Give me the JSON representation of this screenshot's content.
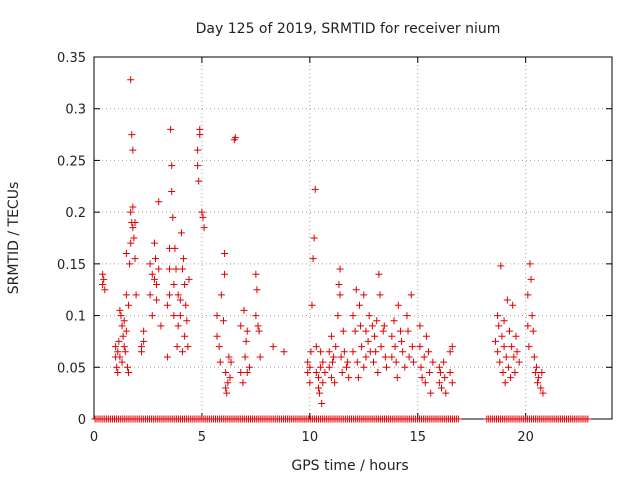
{
  "chart_data": {
    "type": "scatter",
    "title": "Day 125 of 2019, SRMTID for receiver nium",
    "xlabel": "GPS time / hours",
    "ylabel": "SRMTID / TECUs",
    "xlim": [
      0,
      24
    ],
    "ylim": [
      0,
      0.35
    ],
    "xticks": [
      0,
      5,
      10,
      15,
      20
    ],
    "yticks": [
      0,
      0.05,
      0.1,
      0.15,
      0.2,
      0.25,
      0.3,
      0.35
    ],
    "xtick_labels": [
      "0",
      "5",
      "10",
      "15",
      "20"
    ],
    "ytick_labels": [
      "0",
      "0.05",
      "0.1",
      "0.15",
      "0.2",
      "0.25",
      "0.3",
      "0.35"
    ],
    "grid": true,
    "marker": "+",
    "series": [
      {
        "name": "SRMTID",
        "color": "#e00000",
        "points": [
          [
            0.4,
            0.14
          ],
          [
            0.4,
            0.13
          ],
          [
            0.5,
            0.125
          ],
          [
            0.45,
            0.135
          ],
          [
            1.0,
            0.07
          ],
          [
            1.0,
            0.06
          ],
          [
            1.05,
            0.05
          ],
          [
            1.1,
            0.065
          ],
          [
            1.1,
            0.045
          ],
          [
            1.15,
            0.075
          ],
          [
            1.2,
            0.06
          ],
          [
            1.2,
            0.105
          ],
          [
            1.25,
            0.1
          ],
          [
            1.3,
            0.09
          ],
          [
            1.3,
            0.055
          ],
          [
            1.35,
            0.08
          ],
          [
            1.4,
            0.095
          ],
          [
            1.4,
            0.07
          ],
          [
            1.45,
            0.065
          ],
          [
            1.5,
            0.085
          ],
          [
            1.5,
            0.12
          ],
          [
            1.5,
            0.16
          ],
          [
            1.55,
            0.05
          ],
          [
            1.6,
            0.045
          ],
          [
            1.6,
            0.11
          ],
          [
            1.65,
            0.15
          ],
          [
            1.7,
            0.17
          ],
          [
            1.75,
            0.19
          ],
          [
            1.7,
            0.2
          ],
          [
            1.8,
            0.205
          ],
          [
            1.8,
            0.185
          ],
          [
            1.75,
            0.275
          ],
          [
            1.7,
            0.328
          ],
          [
            1.8,
            0.26
          ],
          [
            1.85,
            0.175
          ],
          [
            1.9,
            0.155
          ],
          [
            1.9,
            0.19
          ],
          [
            1.95,
            0.12
          ],
          [
            2.2,
            0.07
          ],
          [
            2.2,
            0.065
          ],
          [
            2.3,
            0.085
          ],
          [
            2.3,
            0.075
          ],
          [
            2.6,
            0.12
          ],
          [
            2.6,
            0.15
          ],
          [
            2.7,
            0.14
          ],
          [
            2.7,
            0.1
          ],
          [
            2.8,
            0.135
          ],
          [
            2.8,
            0.17
          ],
          [
            2.85,
            0.155
          ],
          [
            2.9,
            0.115
          ],
          [
            2.9,
            0.13
          ],
          [
            3.0,
            0.145
          ],
          [
            3.0,
            0.21
          ],
          [
            3.1,
            0.09
          ],
          [
            3.4,
            0.11
          ],
          [
            3.4,
            0.06
          ],
          [
            3.5,
            0.12
          ],
          [
            3.5,
            0.145
          ],
          [
            3.5,
            0.165
          ],
          [
            3.55,
            0.28
          ],
          [
            3.6,
            0.245
          ],
          [
            3.6,
            0.22
          ],
          [
            3.65,
            0.195
          ],
          [
            3.7,
            0.1
          ],
          [
            3.7,
            0.13
          ],
          [
            3.75,
            0.165
          ],
          [
            3.8,
            0.145
          ],
          [
            3.85,
            0.07
          ],
          [
            3.9,
            0.12
          ],
          [
            3.9,
            0.09
          ],
          [
            4.0,
            0.115
          ],
          [
            4.0,
            0.1
          ],
          [
            4.05,
            0.18
          ],
          [
            4.1,
            0.145
          ],
          [
            4.1,
            0.065
          ],
          [
            4.15,
            0.155
          ],
          [
            4.2,
            0.08
          ],
          [
            4.2,
            0.13
          ],
          [
            4.25,
            0.11
          ],
          [
            4.3,
            0.095
          ],
          [
            4.35,
            0.07
          ],
          [
            4.4,
            0.135
          ],
          [
            4.8,
            0.26
          ],
          [
            4.8,
            0.245
          ],
          [
            4.85,
            0.23
          ],
          [
            4.9,
            0.275
          ],
          [
            4.9,
            0.28
          ],
          [
            5.0,
            0.2
          ],
          [
            5.05,
            0.195
          ],
          [
            5.1,
            0.185
          ],
          [
            5.7,
            0.1
          ],
          [
            5.7,
            0.08
          ],
          [
            5.8,
            0.07
          ],
          [
            5.85,
            0.055
          ],
          [
            5.9,
            0.12
          ],
          [
            6.0,
            0.095
          ],
          [
            6.05,
            0.16
          ],
          [
            6.05,
            0.14
          ],
          [
            6.1,
            0.03
          ],
          [
            6.1,
            0.045
          ],
          [
            6.15,
            0.025
          ],
          [
            6.2,
            0.035
          ],
          [
            6.25,
            0.06
          ],
          [
            6.3,
            0.04
          ],
          [
            6.35,
            0.055
          ],
          [
            6.5,
            0.27
          ],
          [
            6.55,
            0.272
          ],
          [
            6.8,
            0.045
          ],
          [
            6.8,
            0.09
          ],
          [
            6.9,
            0.035
          ],
          [
            6.95,
            0.105
          ],
          [
            7.0,
            0.06
          ],
          [
            7.05,
            0.075
          ],
          [
            7.1,
            0.045
          ],
          [
            7.1,
            0.085
          ],
          [
            7.2,
            0.05
          ],
          [
            7.5,
            0.14
          ],
          [
            7.5,
            0.1
          ],
          [
            7.55,
            0.125
          ],
          [
            7.6,
            0.09
          ],
          [
            7.65,
            0.085
          ],
          [
            7.7,
            0.06
          ],
          [
            8.3,
            0.07
          ],
          [
            8.8,
            0.065
          ],
          [
            9.9,
            0.045
          ],
          [
            9.9,
            0.055
          ],
          [
            10.0,
            0.035
          ],
          [
            10.0,
            0.05
          ],
          [
            10.05,
            0.065
          ],
          [
            10.1,
            0.11
          ],
          [
            10.15,
            0.155
          ],
          [
            10.2,
            0.175
          ],
          [
            10.25,
            0.222
          ],
          [
            10.3,
            0.07
          ],
          [
            10.3,
            0.045
          ],
          [
            10.4,
            0.04
          ],
          [
            10.4,
            0.03
          ],
          [
            10.45,
            0.025
          ],
          [
            10.5,
            0.05
          ],
          [
            10.5,
            0.065
          ],
          [
            10.55,
            0.015
          ],
          [
            10.6,
            0.035
          ],
          [
            10.6,
            0.055
          ],
          [
            10.7,
            0.045
          ],
          [
            10.9,
            0.065
          ],
          [
            10.9,
            0.05
          ],
          [
            11.0,
            0.08
          ],
          [
            11.0,
            0.04
          ],
          [
            11.05,
            0.055
          ],
          [
            11.1,
            0.06
          ],
          [
            11.15,
            0.035
          ],
          [
            11.2,
            0.07
          ],
          [
            11.3,
            0.1
          ],
          [
            11.35,
            0.13
          ],
          [
            11.4,
            0.145
          ],
          [
            11.4,
            0.12
          ],
          [
            11.45,
            0.06
          ],
          [
            11.5,
            0.045
          ],
          [
            11.55,
            0.085
          ],
          [
            11.6,
            0.065
          ],
          [
            11.7,
            0.05
          ],
          [
            11.75,
            0.055
          ],
          [
            11.8,
            0.04
          ],
          [
            12.0,
            0.1
          ],
          [
            12.0,
            0.065
          ],
          [
            12.1,
            0.085
          ],
          [
            12.15,
            0.125
          ],
          [
            12.2,
            0.055
          ],
          [
            12.25,
            0.04
          ],
          [
            12.3,
            0.11
          ],
          [
            12.35,
            0.09
          ],
          [
            12.4,
            0.07
          ],
          [
            12.5,
            0.12
          ],
          [
            12.5,
            0.05
          ],
          [
            12.6,
            0.085
          ],
          [
            12.6,
            0.06
          ],
          [
            12.7,
            0.075
          ],
          [
            12.75,
            0.1
          ],
          [
            12.8,
            0.065
          ],
          [
            12.9,
            0.09
          ],
          [
            12.95,
            0.055
          ],
          [
            13.0,
            0.08
          ],
          [
            13.05,
            0.065
          ],
          [
            13.1,
            0.095
          ],
          [
            13.15,
            0.045
          ],
          [
            13.2,
            0.14
          ],
          [
            13.25,
            0.12
          ],
          [
            13.3,
            0.07
          ],
          [
            13.4,
            0.085
          ],
          [
            13.45,
            0.09
          ],
          [
            13.5,
            0.06
          ],
          [
            13.55,
            0.05
          ],
          [
            13.8,
            0.08
          ],
          [
            13.8,
            0.06
          ],
          [
            13.9,
            0.095
          ],
          [
            13.95,
            0.07
          ],
          [
            14.0,
            0.055
          ],
          [
            14.05,
            0.04
          ],
          [
            14.1,
            0.11
          ],
          [
            14.2,
            0.085
          ],
          [
            14.25,
            0.075
          ],
          [
            14.3,
            0.065
          ],
          [
            14.4,
            0.05
          ],
          [
            14.5,
            0.1
          ],
          [
            14.55,
            0.085
          ],
          [
            14.6,
            0.06
          ],
          [
            14.7,
            0.12
          ],
          [
            14.75,
            0.07
          ],
          [
            14.8,
            0.055
          ],
          [
            15.1,
            0.09
          ],
          [
            15.1,
            0.07
          ],
          [
            15.15,
            0.05
          ],
          [
            15.2,
            0.04
          ],
          [
            15.3,
            0.06
          ],
          [
            15.35,
            0.035
          ],
          [
            15.4,
            0.08
          ],
          [
            15.5,
            0.065
          ],
          [
            15.55,
            0.045
          ],
          [
            15.6,
            0.025
          ],
          [
            15.7,
            0.055
          ],
          [
            16.0,
            0.05
          ],
          [
            16.0,
            0.035
          ],
          [
            16.05,
            0.045
          ],
          [
            16.1,
            0.03
          ],
          [
            16.2,
            0.055
          ],
          [
            16.25,
            0.04
          ],
          [
            16.3,
            0.025
          ],
          [
            16.5,
            0.045
          ],
          [
            16.5,
            0.065
          ],
          [
            16.6,
            0.07
          ],
          [
            16.6,
            0.035
          ],
          [
            18.6,
            0.075
          ],
          [
            18.7,
            0.1
          ],
          [
            18.7,
            0.065
          ],
          [
            18.75,
            0.09
          ],
          [
            18.8,
            0.055
          ],
          [
            18.85,
            0.148
          ],
          [
            18.9,
            0.08
          ],
          [
            18.95,
            0.045
          ],
          [
            19.0,
            0.07
          ],
          [
            19.0,
            0.095
          ],
          [
            19.05,
            0.035
          ],
          [
            19.1,
            0.06
          ],
          [
            19.15,
            0.115
          ],
          [
            19.2,
            0.05
          ],
          [
            19.25,
            0.085
          ],
          [
            19.3,
            0.04
          ],
          [
            19.35,
            0.07
          ],
          [
            19.4,
            0.11
          ],
          [
            19.45,
            0.06
          ],
          [
            19.5,
            0.045
          ],
          [
            19.55,
            0.08
          ],
          [
            19.6,
            0.065
          ],
          [
            19.7,
            0.055
          ],
          [
            20.1,
            0.12
          ],
          [
            20.1,
            0.09
          ],
          [
            20.15,
            0.07
          ],
          [
            20.2,
            0.15
          ],
          [
            20.25,
            0.135
          ],
          [
            20.3,
            0.1
          ],
          [
            20.35,
            0.085
          ],
          [
            20.4,
            0.06
          ],
          [
            20.45,
            0.045
          ],
          [
            20.5,
            0.05
          ],
          [
            20.55,
            0.035
          ],
          [
            20.6,
            0.04
          ],
          [
            20.7,
            0.03
          ],
          [
            20.75,
            0.045
          ],
          [
            20.8,
            0.025
          ]
        ]
      }
    ],
    "zero_band": {
      "description": "dense row of points at y = 0",
      "x_ranges": [
        [
          0.05,
          16.9
        ],
        [
          18.2,
          22.9
        ]
      ]
    }
  }
}
